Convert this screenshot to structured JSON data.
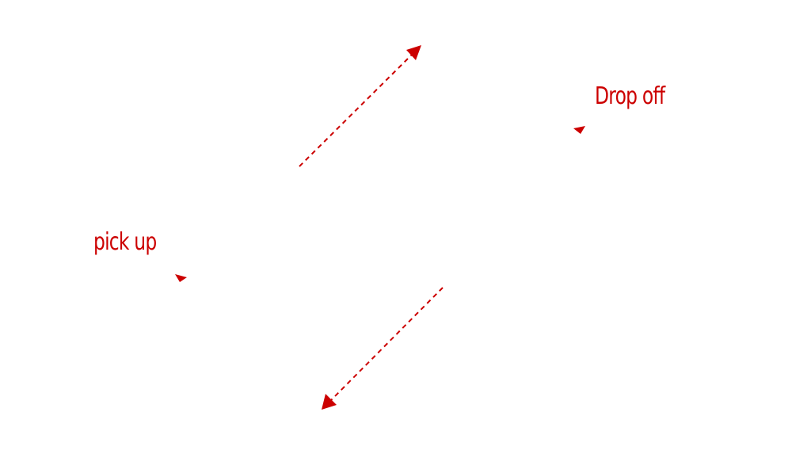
{
  "colors": {
    "accent": "#cc0000",
    "background": "#ffffff"
  },
  "labels": {
    "drop_off": "Drop off",
    "pick_up": "pick up"
  },
  "icons": {
    "dashed_arrow_upper": "dashed-arrow-up-right-icon",
    "dashed_arrow_lower": "dashed-arrow-down-left-icon",
    "dropoff_marker": "triangle-pointer-icon",
    "pickup_marker": "triangle-pointer-icon"
  }
}
